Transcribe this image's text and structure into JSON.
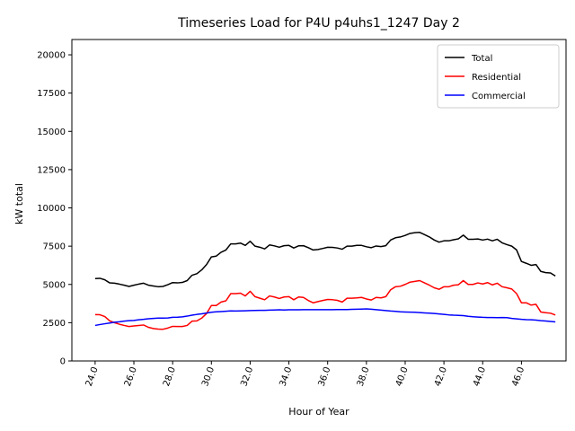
{
  "chart_data": {
    "type": "line",
    "title": "Timeseries Load for P4U p4uhs1_1247  Day 2",
    "xlabel": "Hour of Year",
    "ylabel": "kW total",
    "xlim": [
      22.8,
      48.3
    ],
    "ylim": [
      0,
      21000
    ],
    "x_ticks": [
      24,
      26,
      28,
      30,
      32,
      34,
      36,
      38,
      40,
      42,
      44,
      46
    ],
    "x_tick_labels": [
      "24.0",
      "26.0",
      "28.0",
      "30.0",
      "32.0",
      "34.0",
      "36.0",
      "38.0",
      "40.0",
      "42.0",
      "44.0",
      "46.0"
    ],
    "y_ticks": [
      0,
      2500,
      5000,
      7500,
      10000,
      12500,
      15000,
      17500,
      20000
    ],
    "y_tick_labels": [
      "0",
      "2500",
      "5000",
      "7500",
      "10000",
      "12500",
      "15000",
      "17500",
      "20000"
    ],
    "legend_position": "top-right",
    "x": [
      24.0,
      24.25,
      24.5,
      24.75,
      25.0,
      25.25,
      25.5,
      25.75,
      26.0,
      26.25,
      26.5,
      26.75,
      27.0,
      27.25,
      27.5,
      27.75,
      28.0,
      28.25,
      28.5,
      28.75,
      29.0,
      29.25,
      29.5,
      29.75,
      30.0,
      30.25,
      30.5,
      30.75,
      31.0,
      31.25,
      31.5,
      31.75,
      32.0,
      32.25,
      32.5,
      32.75,
      33.0,
      33.25,
      33.5,
      33.75,
      34.0,
      34.25,
      34.5,
      34.75,
      35.0,
      35.25,
      35.5,
      35.75,
      36.0,
      36.25,
      36.5,
      36.75,
      37.0,
      37.25,
      37.5,
      37.75,
      38.0,
      38.25,
      38.5,
      38.75,
      39.0,
      39.25,
      39.5,
      39.75,
      40.0,
      40.25,
      40.5,
      40.75,
      41.0,
      41.25,
      41.5,
      41.75,
      42.0,
      42.25,
      42.5,
      42.75,
      43.0,
      43.25,
      43.5,
      43.75,
      44.0,
      44.25,
      44.5,
      44.75,
      45.0,
      45.25,
      45.5,
      45.75,
      46.0,
      46.25,
      46.5,
      46.75,
      47.0,
      47.25,
      47.5,
      47.75
    ],
    "series": [
      {
        "name": "Total",
        "color": "#000000",
        "values": [
          5380,
          5400,
          5300,
          5100,
          5080,
          5020,
          4950,
          4870,
          4950,
          5020,
          5080,
          4950,
          4900,
          4850,
          4870,
          4980,
          5120,
          5100,
          5130,
          5250,
          5600,
          5700,
          5950,
          6300,
          6800,
          6850,
          7100,
          7250,
          7650,
          7650,
          7700,
          7550,
          7820,
          7500,
          7430,
          7320,
          7580,
          7520,
          7430,
          7530,
          7550,
          7380,
          7520,
          7530,
          7400,
          7250,
          7280,
          7350,
          7430,
          7420,
          7380,
          7300,
          7500,
          7500,
          7550,
          7550,
          7460,
          7400,
          7510,
          7470,
          7530,
          7900,
          8050,
          8100,
          8200,
          8330,
          8380,
          8400,
          8250,
          8100,
          7900,
          7760,
          7850,
          7850,
          7920,
          7980,
          8220,
          7950,
          7950,
          7970,
          7900,
          7960,
          7850,
          7950,
          7720,
          7600,
          7500,
          7250,
          6500,
          6380,
          6250,
          6300,
          5850,
          5770,
          5750,
          5550
        ]
      },
      {
        "name": "Residential",
        "color": "#ff0000",
        "values": [
          3030,
          3020,
          2900,
          2620,
          2500,
          2400,
          2320,
          2250,
          2290,
          2320,
          2350,
          2200,
          2120,
          2080,
          2070,
          2150,
          2260,
          2250,
          2250,
          2320,
          2600,
          2620,
          2800,
          3100,
          3620,
          3620,
          3850,
          3930,
          4400,
          4400,
          4430,
          4250,
          4550,
          4200,
          4100,
          4000,
          4250,
          4180,
          4080,
          4180,
          4200,
          4000,
          4180,
          4150,
          3950,
          3800,
          3880,
          3950,
          4020,
          4000,
          3960,
          3850,
          4100,
          4100,
          4120,
          4150,
          4050,
          3980,
          4150,
          4120,
          4200,
          4650,
          4850,
          4880,
          5000,
          5150,
          5200,
          5250,
          5100,
          4950,
          4780,
          4680,
          4850,
          4850,
          4950,
          4980,
          5250,
          5000,
          5000,
          5100,
          5030,
          5120,
          4970,
          5080,
          4850,
          4780,
          4700,
          4400,
          3800,
          3800,
          3650,
          3700,
          3200,
          3150,
          3120,
          3000
        ]
      },
      {
        "name": "Commercial",
        "color": "#0000ff",
        "values": [
          2320,
          2380,
          2430,
          2480,
          2530,
          2560,
          2600,
          2630,
          2650,
          2690,
          2720,
          2760,
          2780,
          2800,
          2800,
          2810,
          2850,
          2860,
          2880,
          2930,
          2990,
          3040,
          3080,
          3130,
          3180,
          3210,
          3230,
          3250,
          3270,
          3260,
          3270,
          3280,
          3290,
          3300,
          3310,
          3310,
          3320,
          3330,
          3340,
          3330,
          3340,
          3340,
          3340,
          3350,
          3350,
          3350,
          3350,
          3350,
          3350,
          3350,
          3360,
          3360,
          3360,
          3370,
          3380,
          3390,
          3400,
          3380,
          3350,
          3320,
          3290,
          3260,
          3240,
          3210,
          3200,
          3190,
          3180,
          3160,
          3140,
          3120,
          3100,
          3070,
          3040,
          3010,
          2990,
          2980,
          2960,
          2920,
          2890,
          2870,
          2850,
          2840,
          2840,
          2830,
          2840,
          2830,
          2780,
          2750,
          2720,
          2700,
          2690,
          2670,
          2630,
          2610,
          2580,
          2550
        ]
      }
    ]
  }
}
